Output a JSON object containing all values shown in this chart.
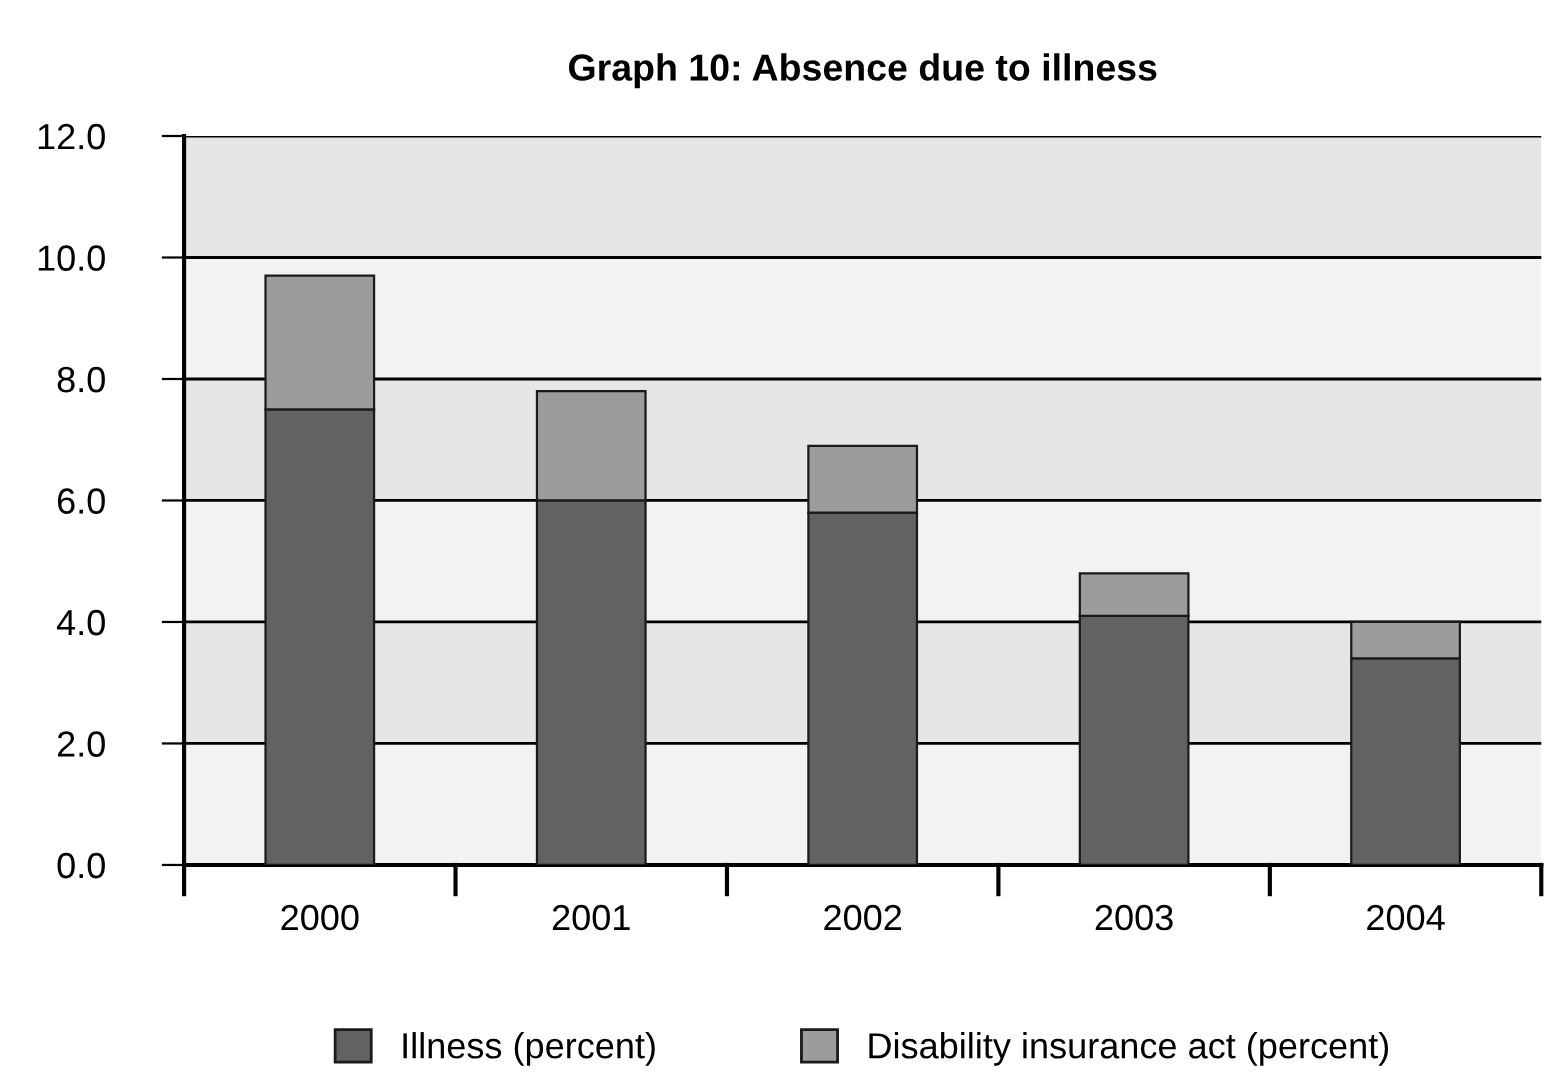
{
  "chart_data": {
    "type": "bar",
    "title": "Graph 10: Absence due to illness",
    "categories": [
      "2000",
      "2001",
      "2002",
      "2003",
      "2004"
    ],
    "stacked": true,
    "series": [
      {
        "name": "Illness (percent)",
        "color": "#626262",
        "values": [
          7.5,
          6.0,
          5.8,
          4.1,
          3.4
        ]
      },
      {
        "name": "Disability insurance act (percent)",
        "color": "#9c9c9c",
        "values": [
          2.2,
          1.8,
          1.1,
          0.7,
          0.6
        ]
      }
    ],
    "ylim": [
      0,
      12
    ],
    "yticks": [
      {
        "value": 0,
        "label": "0.0"
      },
      {
        "value": 2,
        "label": "2.0"
      },
      {
        "value": 4,
        "label": "4.0"
      },
      {
        "value": 6,
        "label": "6.0"
      },
      {
        "value": 8,
        "label": "8.0"
      },
      {
        "value": 10,
        "label": "10.0"
      },
      {
        "value": 12,
        "label": "12.0"
      }
    ],
    "grid": "y",
    "legend": "bottom"
  }
}
